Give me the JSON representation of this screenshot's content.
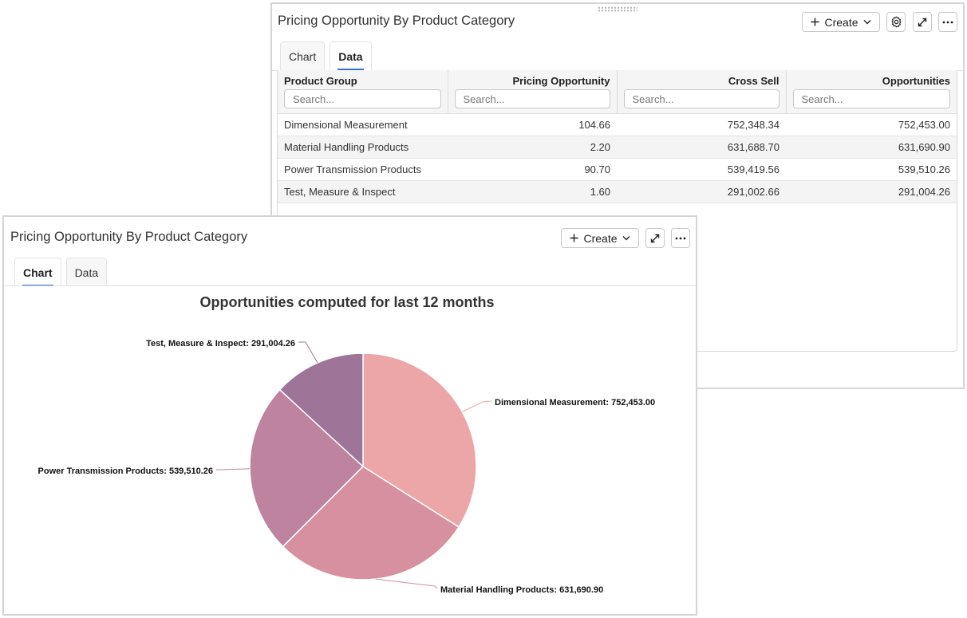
{
  "back_panel": {
    "title": "Pricing Opportunity By Product Category",
    "create_label": "Create",
    "tabs": [
      {
        "label": "Chart",
        "active": false
      },
      {
        "label": "Data",
        "active": true
      }
    ],
    "table": {
      "columns": [
        {
          "label": "Product Group",
          "placeholder": "Search..."
        },
        {
          "label": "Pricing Opportunity",
          "placeholder": "Search..."
        },
        {
          "label": "Cross Sell",
          "placeholder": "Search..."
        },
        {
          "label": "Opportunities",
          "placeholder": "Search..."
        }
      ],
      "rows": [
        [
          "Dimensional Measurement",
          "104.66",
          "752,348.34",
          "752,453.00"
        ],
        [
          "Material Handling Products",
          "2.20",
          "631,688.70",
          "631,690.90"
        ],
        [
          "Power Transmission Products",
          "90.70",
          "539,419.56",
          "539,510.26"
        ],
        [
          "Test, Measure & Inspect",
          "1.60",
          "291,002.66",
          "291,004.26"
        ]
      ]
    }
  },
  "front_panel": {
    "title": "Pricing Opportunity By Product Category",
    "create_label": "Create",
    "tabs": [
      {
        "label": "Chart",
        "active": true
      },
      {
        "label": "Data",
        "active": false
      }
    ]
  },
  "chart_data": {
    "type": "pie",
    "title": "Opportunities computed for last 12 months",
    "slices": [
      {
        "label": "Dimensional Measurement: 752,453.00",
        "category": "Dimensional Measurement",
        "value": 752453.0,
        "color": "#eca6a7"
      },
      {
        "label": "Material Handling Products: 631,690.90",
        "category": "Material Handling Products",
        "value": 631690.9,
        "color": "#d6909f"
      },
      {
        "label": "Power Transmission Products: 539,510.26",
        "category": "Power Transmission Products",
        "value": 539510.26,
        "color": "#be839f"
      },
      {
        "label": "Test, Measure & Inspect: 291,004.26",
        "category": "Test, Measure & Inspect",
        "value": 291004.26,
        "color": "#9e7599"
      }
    ],
    "start_angle": "12 o'clock",
    "direction": "clockwise",
    "legend": "none"
  }
}
